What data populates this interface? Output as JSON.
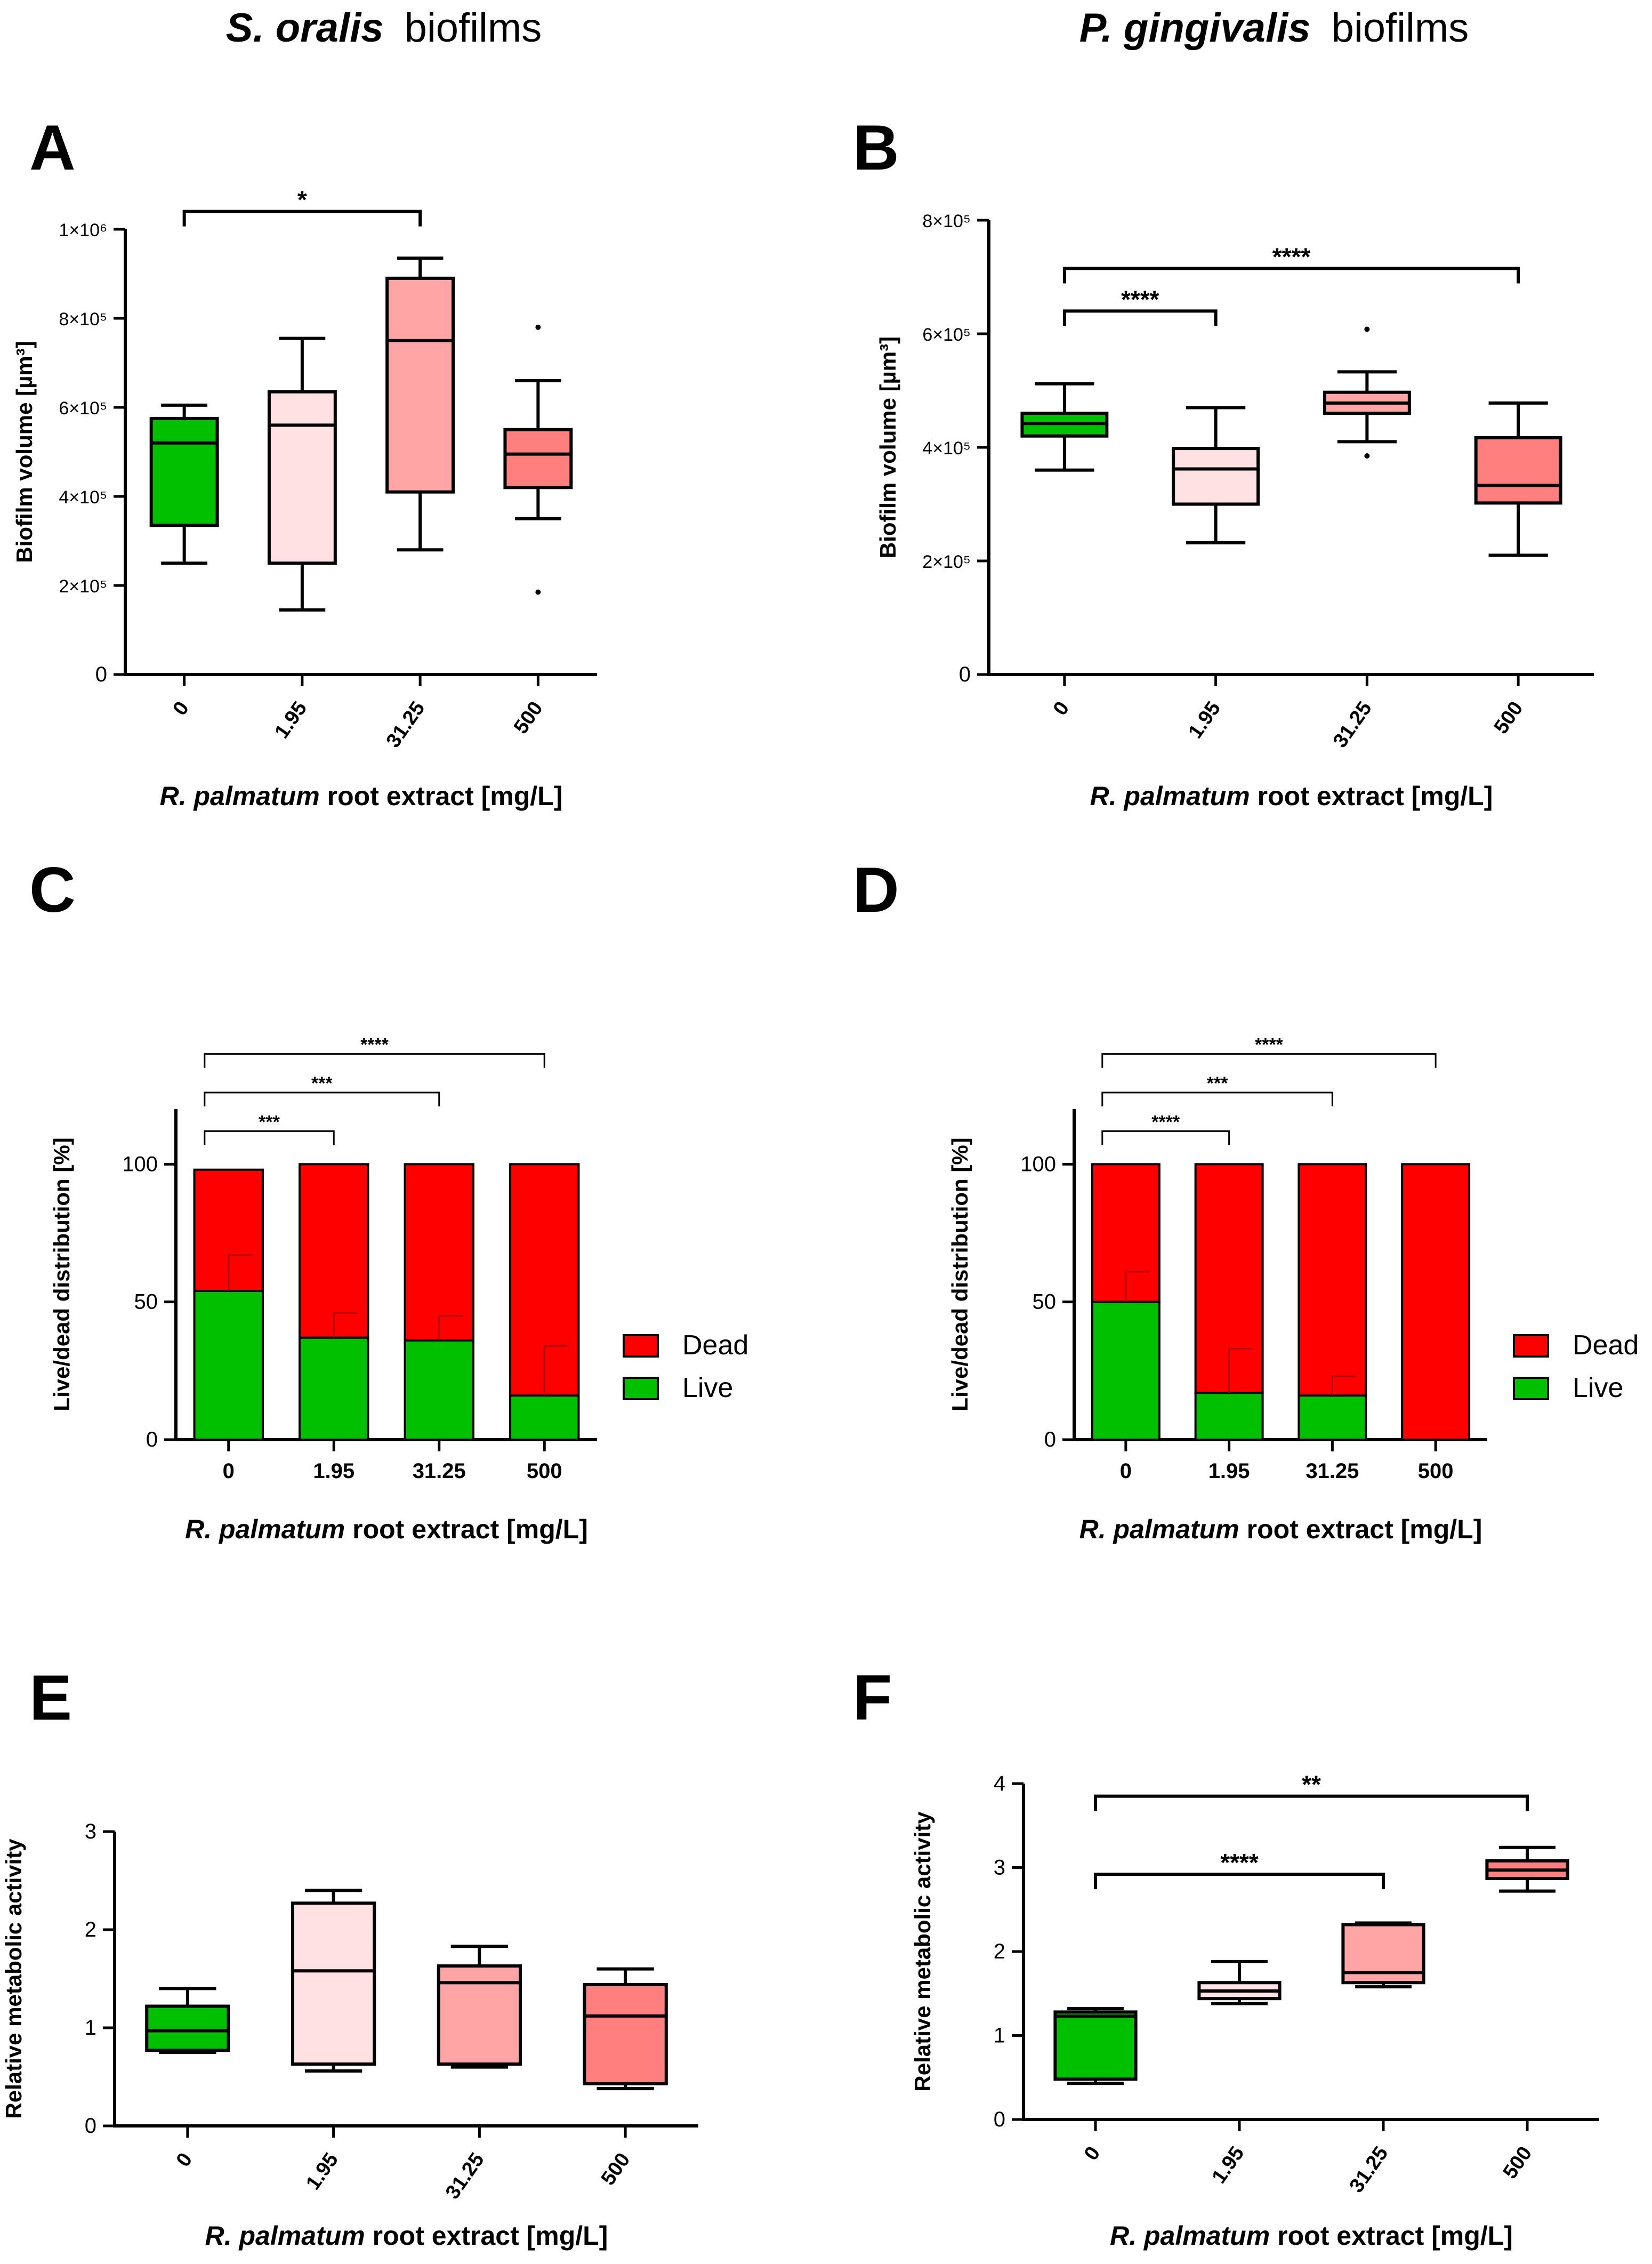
{
  "colors": {
    "green": "#00c000",
    "red": "#ff0000",
    "c0": "#00c000",
    "c195": "#ffe0e3",
    "c3125": "#ffa5a5",
    "c500": "#ff7e7e",
    "axis": "#000000"
  },
  "column_titles": {
    "left": {
      "species": "S. oralis",
      "suffix": "biofilms"
    },
    "right": {
      "species": "P. gingivalis",
      "suffix": "biofilms"
    }
  },
  "xlabel": {
    "species": "R. palmatum",
    "suffix": "root extract [mg/L]"
  },
  "chart_data": [
    {
      "id": "A",
      "panel": "A",
      "type": "box",
      "ylabel": "Biofilm volume [µm³]",
      "ylim": [
        0,
        1000000
      ],
      "yticks": [
        {
          "value": 0,
          "label": "0"
        },
        {
          "value": 200000,
          "label": "2×10⁵"
        },
        {
          "value": 400000,
          "label": "4×10⁵"
        },
        {
          "value": 600000,
          "label": "6×10⁵"
        },
        {
          "value": 800000,
          "label": "8×10⁵"
        },
        {
          "value": 1000000,
          "label": "1×10⁶"
        }
      ],
      "categories": [
        "0",
        "1.95",
        "31.25",
        "500"
      ],
      "boxes": [
        {
          "min": 250000,
          "q1": 335000,
          "median": 520000,
          "q3": 575000,
          "max": 605000,
          "outliers": []
        },
        {
          "min": 145000,
          "q1": 250000,
          "median": 560000,
          "q3": 635000,
          "max": 755000,
          "outliers": []
        },
        {
          "min": 280000,
          "q1": 410000,
          "median": 750000,
          "q3": 890000,
          "max": 935000,
          "outliers": []
        },
        {
          "min": 350000,
          "q1": 420000,
          "median": 495000,
          "q3": 550000,
          "max": 660000,
          "outliers": [
            780000,
            185000
          ]
        }
      ],
      "brackets": [
        {
          "from": 0,
          "to": 2,
          "label": "*",
          "y": 1040000
        }
      ]
    },
    {
      "id": "B",
      "panel": "B",
      "type": "box",
      "ylabel": "Biofilm volume [µm³]",
      "ylim": [
        0,
        800000
      ],
      "yticks": [
        {
          "value": 0,
          "label": "0"
        },
        {
          "value": 200000,
          "label": "2×10⁵"
        },
        {
          "value": 400000,
          "label": "4×10⁵"
        },
        {
          "value": 600000,
          "label": "6×10⁵"
        },
        {
          "value": 800000,
          "label": "8×10⁵"
        }
      ],
      "categories": [
        "0",
        "1.95",
        "31.25",
        "500"
      ],
      "boxes": [
        {
          "min": 360000,
          "q1": 420000,
          "median": 442000,
          "q3": 460000,
          "max": 512000,
          "outliers": []
        },
        {
          "min": 232000,
          "q1": 300000,
          "median": 362000,
          "q3": 398000,
          "max": 470000,
          "outliers": []
        },
        {
          "min": 410000,
          "q1": 460000,
          "median": 478000,
          "q3": 497000,
          "max": 533000,
          "outliers": [
            608000,
            385000
          ]
        },
        {
          "min": 210000,
          "q1": 302000,
          "median": 333000,
          "q3": 417000,
          "max": 478000,
          "outliers": []
        }
      ],
      "brackets": [
        {
          "from": 0,
          "to": 1,
          "label": "****",
          "y": 640000
        },
        {
          "from": 0,
          "to": 3,
          "label": "****",
          "y": 715000
        }
      ]
    },
    {
      "id": "C",
      "panel": "C",
      "type": "stacked-bar",
      "ylabel": "Live/dead distribution [%]",
      "ylim": [
        0,
        120
      ],
      "yticks": [
        {
          "value": 0,
          "label": "0"
        },
        {
          "value": 50,
          "label": "50"
        },
        {
          "value": 100,
          "label": "100"
        }
      ],
      "categories": [
        "0",
        "1.95",
        "31.25",
        "500"
      ],
      "series": [
        {
          "name": "Live",
          "values": [
            54,
            37,
            36,
            16
          ],
          "errors": [
            13,
            9,
            9,
            18
          ]
        },
        {
          "name": "Dead",
          "values": [
            44,
            63,
            64,
            84
          ],
          "errors": [
            0,
            0,
            0,
            0
          ]
        }
      ],
      "legend": [
        "Dead",
        "Live"
      ],
      "brackets": [
        {
          "from": 0,
          "to": 1,
          "label": "***",
          "y": 112
        },
        {
          "from": 0,
          "to": 2,
          "label": "***",
          "y": 126
        },
        {
          "from": 0,
          "to": 3,
          "label": "****",
          "y": 140
        }
      ]
    },
    {
      "id": "D",
      "panel": "D",
      "type": "stacked-bar",
      "ylabel": "Live/dead distribution [%]",
      "ylim": [
        0,
        120
      ],
      "yticks": [
        {
          "value": 0,
          "label": "0"
        },
        {
          "value": 50,
          "label": "50"
        },
        {
          "value": 100,
          "label": "100"
        }
      ],
      "categories": [
        "0",
        "1.95",
        "31.25",
        "500"
      ],
      "series": [
        {
          "name": "Live",
          "values": [
            50,
            17,
            16,
            0
          ],
          "errors": [
            11,
            16,
            7,
            0
          ]
        },
        {
          "name": "Dead",
          "values": [
            50,
            83,
            84,
            100
          ],
          "errors": [
            0,
            0,
            0,
            0
          ]
        }
      ],
      "legend": [
        "Dead",
        "Live"
      ],
      "brackets": [
        {
          "from": 0,
          "to": 1,
          "label": "****",
          "y": 112
        },
        {
          "from": 0,
          "to": 2,
          "label": "***",
          "y": 126
        },
        {
          "from": 0,
          "to": 3,
          "label": "****",
          "y": 140
        }
      ]
    },
    {
      "id": "E",
      "panel": "E",
      "type": "box",
      "ylabel": "Relative metabolic activity",
      "ylim": [
        0,
        3
      ],
      "yticks": [
        {
          "value": 0,
          "label": "0"
        },
        {
          "value": 1,
          "label": "1"
        },
        {
          "value": 2,
          "label": "2"
        },
        {
          "value": 3,
          "label": "3"
        }
      ],
      "categories": [
        "0",
        "1.95",
        "31.25",
        "500"
      ],
      "boxes": [
        {
          "min": 0.75,
          "q1": 0.77,
          "median": 0.97,
          "q3": 1.22,
          "max": 1.4,
          "outliers": []
        },
        {
          "min": 0.56,
          "q1": 0.63,
          "median": 1.58,
          "q3": 2.27,
          "max": 2.4,
          "outliers": []
        },
        {
          "min": 0.6,
          "q1": 0.63,
          "median": 1.46,
          "q3": 1.63,
          "max": 1.83,
          "outliers": []
        },
        {
          "min": 0.38,
          "q1": 0.43,
          "median": 1.12,
          "q3": 1.44,
          "max": 1.6,
          "outliers": []
        }
      ],
      "brackets": []
    },
    {
      "id": "F",
      "panel": "F",
      "type": "box",
      "ylabel": "Relative metabolic activity",
      "ylim": [
        0,
        4
      ],
      "yticks": [
        {
          "value": 0,
          "label": "0"
        },
        {
          "value": 1,
          "label": "1"
        },
        {
          "value": 2,
          "label": "2"
        },
        {
          "value": 3,
          "label": "3"
        },
        {
          "value": 4,
          "label": "4"
        }
      ],
      "categories": [
        "0",
        "1.95",
        "31.25",
        "500"
      ],
      "boxes": [
        {
          "min": 0.43,
          "q1": 0.48,
          "median": 1.23,
          "q3": 1.28,
          "max": 1.32,
          "outliers": []
        },
        {
          "min": 1.38,
          "q1": 1.44,
          "median": 1.53,
          "q3": 1.63,
          "max": 1.88,
          "outliers": []
        },
        {
          "min": 1.58,
          "q1": 1.63,
          "median": 1.75,
          "q3": 2.32,
          "max": 2.34,
          "outliers": []
        },
        {
          "min": 2.72,
          "q1": 2.87,
          "median": 2.97,
          "q3": 3.08,
          "max": 3.24,
          "outliers": []
        }
      ],
      "brackets": [
        {
          "from": 0,
          "to": 2,
          "label": "****",
          "y": 2.92
        },
        {
          "from": 0,
          "to": 3,
          "label": "**",
          "y": 3.85
        }
      ]
    }
  ]
}
